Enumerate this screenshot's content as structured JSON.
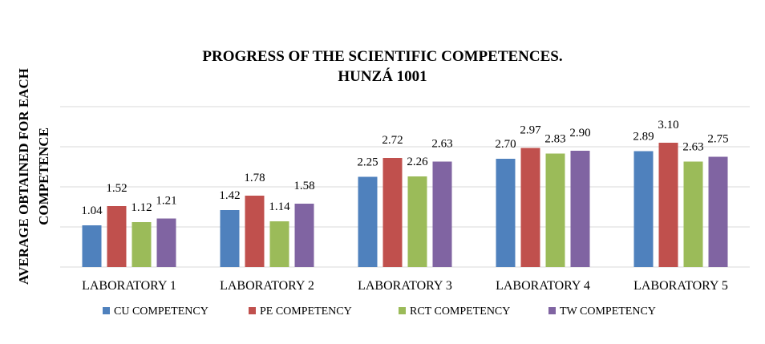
{
  "chart_data": {
    "type": "bar",
    "title": [
      "PROGRESS OF THE SCIENTIFIC COMPETENCES.",
      "HUNZÁ 1001"
    ],
    "ylabel": [
      "AVERAGE OBTAINED FOR EACH",
      "COMPETENCE"
    ],
    "xlabel": "",
    "ylim": [
      0,
      4
    ],
    "grid": true,
    "legend_position": "bottom",
    "categories": [
      "LABORATORY 1",
      "LABORATORY 2",
      "LABORATORY 3",
      "LABORATORY 4",
      "LABORATORY 5"
    ],
    "series": [
      {
        "name": "CU COMPETENCY",
        "color": "#4F81BD",
        "values": [
          1.04,
          1.42,
          2.25,
          2.7,
          2.89
        ],
        "labels": [
          "1.04",
          "1.42",
          "2.25",
          "2.70",
          "2.89"
        ]
      },
      {
        "name": "PE COMPETENCY",
        "color": "#C0504D",
        "values": [
          1.52,
          1.78,
          2.72,
          2.97,
          3.1
        ],
        "labels": [
          "1.52",
          "1.78",
          "2.72",
          "2.97",
          "3.10"
        ]
      },
      {
        "name": "RCT COMPETENCY",
        "color": "#9BBB59",
        "values": [
          1.12,
          1.14,
          2.26,
          2.83,
          2.63
        ],
        "labels": [
          "1.12",
          "1.14",
          "2.26",
          "2.83",
          "2.63"
        ]
      },
      {
        "name": "TW COMPETENCY",
        "color": "#8064A2",
        "values": [
          1.21,
          1.58,
          2.63,
          2.9,
          2.75
        ],
        "labels": [
          "1.21",
          "1.58",
          "2.63",
          "2.90",
          "2.75"
        ]
      }
    ],
    "gridline_color": "#D9D9D9"
  }
}
